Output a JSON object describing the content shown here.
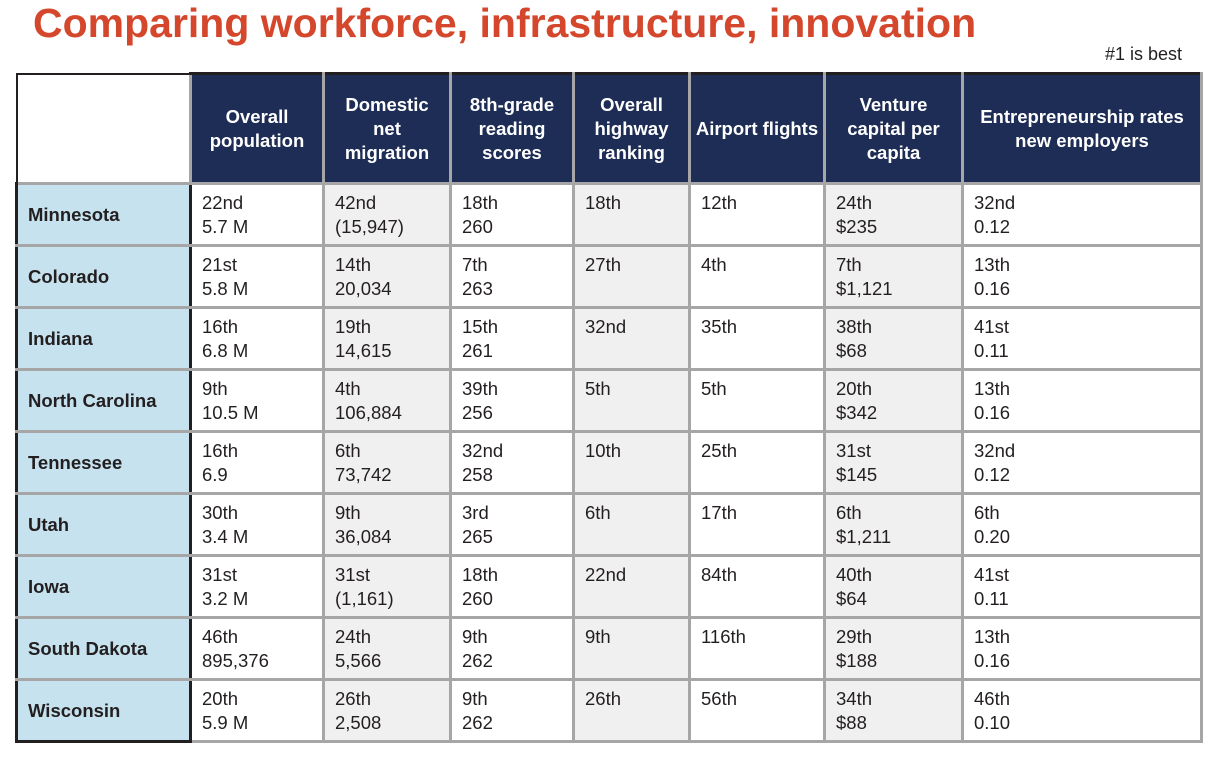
{
  "title": "Comparing workforce, infrastructure, innovation",
  "note": "#1 is best",
  "chart_data": {
    "type": "table",
    "columns": [
      "Overall population",
      "Domestic net migration",
      "8th-grade reading scores",
      "Overall highway ranking",
      "Airport flights",
      "Venture capital per capita",
      "Entrepreneurship rates new employers"
    ],
    "rows": [
      {
        "state": "Minnesota",
        "pop": [
          "22nd",
          "5.7 M"
        ],
        "mig": [
          "42nd",
          "(15,947)"
        ],
        "read": [
          "18th",
          "260"
        ],
        "hwy": "18th",
        "air": "12th",
        "vc": [
          "24th",
          "$235"
        ],
        "ent": [
          "32nd",
          "0.12"
        ]
      },
      {
        "state": "Colorado",
        "pop": [
          "21st",
          "5.8 M"
        ],
        "mig": [
          "14th",
          "20,034"
        ],
        "read": [
          "7th",
          "263"
        ],
        "hwy": "27th",
        "air": "4th",
        "vc": [
          "7th",
          "$1,121"
        ],
        "ent": [
          "13th",
          "0.16"
        ]
      },
      {
        "state": "Indiana",
        "pop": [
          "16th",
          "6.8 M"
        ],
        "mig": [
          "19th",
          "14,615"
        ],
        "read": [
          "15th",
          "261"
        ],
        "hwy": "32nd",
        "air": "35th",
        "vc": [
          "38th",
          "$68"
        ],
        "ent": [
          "41st",
          "0.11"
        ]
      },
      {
        "state": "North Carolina",
        "pop": [
          "9th",
          "10.5 M"
        ],
        "mig": [
          "4th",
          "106,884"
        ],
        "read": [
          "39th",
          "256"
        ],
        "hwy": "5th",
        "air": "5th",
        "vc": [
          "20th",
          "$342"
        ],
        "ent": [
          "13th",
          "0.16"
        ]
      },
      {
        "state": "Tennessee",
        "pop": [
          "16th",
          "6.9"
        ],
        "mig": [
          "6th",
          "73,742"
        ],
        "read": [
          "32nd",
          "258"
        ],
        "hwy": "10th",
        "air": "25th",
        "vc": [
          "31st",
          "$145"
        ],
        "ent": [
          "32nd",
          "0.12"
        ]
      },
      {
        "state": "Utah",
        "pop": [
          "30th",
          "3.4 M"
        ],
        "mig": [
          "9th",
          "36,084"
        ],
        "read": [
          "3rd",
          "265"
        ],
        "hwy": "6th",
        "air": "17th",
        "vc": [
          "6th",
          "$1,211"
        ],
        "ent": [
          "6th",
          "0.20"
        ]
      },
      {
        "state": "Iowa",
        "pop": [
          "31st",
          "3.2 M"
        ],
        "mig": [
          "31st",
          "(1,161)"
        ],
        "read": [
          "18th",
          "260"
        ],
        "hwy": "22nd",
        "air": "84th",
        "vc": [
          "40th",
          "$64"
        ],
        "ent": [
          "41st",
          "0.11"
        ]
      },
      {
        "state": "South Dakota",
        "pop": [
          "46th",
          "895,376"
        ],
        "mig": [
          "24th",
          "5,566"
        ],
        "read": [
          "9th",
          "262"
        ],
        "hwy": "9th",
        "air": "116th",
        "vc": [
          "29th",
          "$188"
        ],
        "ent": [
          "13th",
          "0.16"
        ]
      },
      {
        "state": "Wisconsin",
        "pop": [
          "20th",
          "5.9 M"
        ],
        "mig": [
          "26th",
          "2,508"
        ],
        "read": [
          "9th",
          "262"
        ],
        "hwy": "26th",
        "air": "56th",
        "vc": [
          "34th",
          "$88"
        ],
        "ent": [
          "46th",
          "0.10"
        ]
      }
    ]
  },
  "colors": {
    "title": "#d4472c",
    "header_bg": "#1e2d55",
    "state_bg": "#c6e2ef",
    "alt_col_bg": "#f1f0f0",
    "grid": "#a6a6a6"
  }
}
